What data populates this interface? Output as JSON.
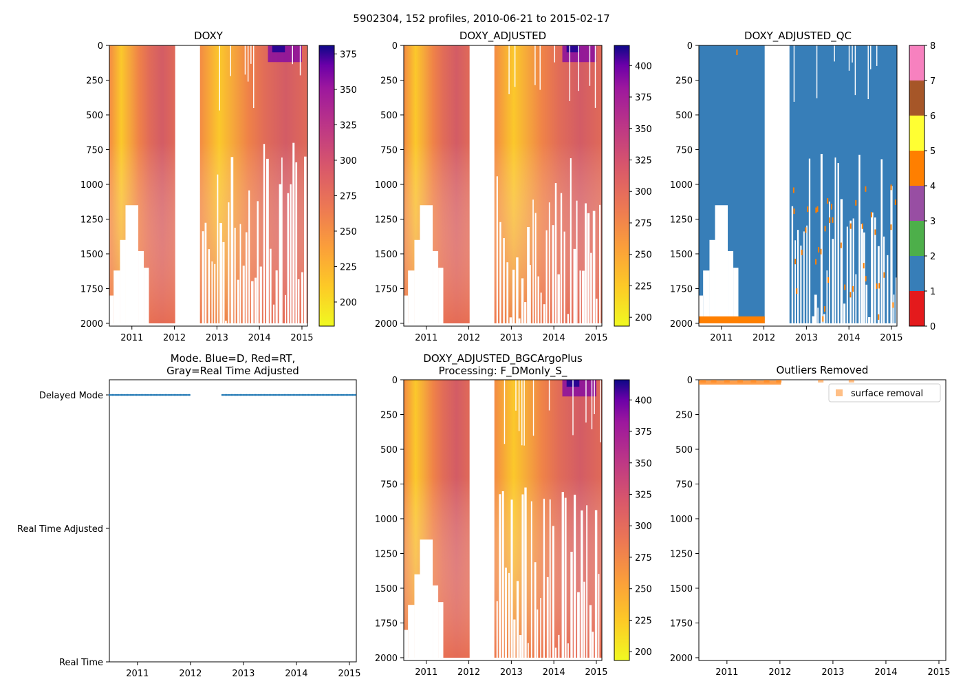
{
  "figure": {
    "suptitle": "5902304, 152 profiles, 2010-06-21 to 2015-02-17"
  },
  "colors": {
    "qc": [
      "#e41a1c",
      "#377eb8",
      "#4daf4a",
      "#984ea3",
      "#ff7f00",
      "#ffff33",
      "#a65628",
      "#f781bf",
      "#999999"
    ],
    "plasma_low": "#f0f921",
    "plasma_high": "#0d0887",
    "outlier": "#ff7f0e",
    "mode_dot": "#1f77b4"
  },
  "chart_data": [
    {
      "id": "doxy",
      "type": "heatmap",
      "title": "DOXY",
      "xlabel": "",
      "ylabel": "",
      "x_range": [
        2010.47,
        2015.13
      ],
      "ylim": [
        2020,
        0
      ],
      "x_ticks": [
        2011,
        2012,
        2013,
        2014,
        2015
      ],
      "y_ticks": [
        0,
        250,
        500,
        750,
        1000,
        1250,
        1500,
        1750,
        2000
      ],
      "colorbar": {
        "cmap": "plasma_r",
        "range": [
          183,
          381
        ],
        "ticks": [
          200,
          225,
          250,
          275,
          300,
          325,
          350,
          375
        ]
      }
    },
    {
      "id": "doxy-adjusted",
      "type": "heatmap",
      "title": "DOXY_ADJUSTED",
      "xlabel": "",
      "ylabel": "",
      "x_range": [
        2010.47,
        2015.13
      ],
      "ylim": [
        2020,
        0
      ],
      "x_ticks": [
        2011,
        2012,
        2013,
        2014,
        2015
      ],
      "y_ticks": [
        0,
        250,
        500,
        750,
        1000,
        1250,
        1500,
        1750,
        2000
      ],
      "colorbar": {
        "cmap": "plasma_r",
        "range": [
          193,
          416
        ],
        "ticks": [
          200,
          225,
          250,
          275,
          300,
          325,
          350,
          375,
          400
        ]
      }
    },
    {
      "id": "doxy-adjusted-qc",
      "type": "heatmap",
      "title": "DOXY_ADJUSTED_QC",
      "xlabel": "",
      "ylabel": "",
      "x_range": [
        2010.47,
        2015.13
      ],
      "ylim": [
        2020,
        0
      ],
      "x_ticks": [
        2011,
        2012,
        2013,
        2014,
        2015
      ],
      "y_ticks": [
        0,
        250,
        500,
        750,
        1000,
        1250,
        1500,
        1750,
        2000
      ],
      "colorbar": {
        "cmap": "categorical",
        "range": [
          0,
          8
        ],
        "ticks": [
          0,
          1,
          2,
          3,
          4,
          5,
          6,
          7,
          8
        ]
      }
    },
    {
      "id": "mode",
      "type": "scatter",
      "title": "Mode. Blue=D, Red=RT,",
      "title_line2": "Gray=Real Time Adjusted",
      "xlabel": "",
      "ylabel": "",
      "x_range": [
        2010.47,
        2015.13
      ],
      "x_ticks": [
        2011,
        2012,
        2013,
        2014,
        2015
      ],
      "y_categories": [
        "Delayed Mode",
        "Real Time Adjusted",
        "Real Time"
      ],
      "series": [
        {
          "name": "Delayed Mode",
          "segments": [
            [
              2010.47,
              2012.0
            ],
            [
              2012.6,
              2015.13
            ]
          ]
        }
      ]
    },
    {
      "id": "bgcargoplus",
      "type": "heatmap",
      "title": "DOXY_ADJUSTED_BGCArgoPlus",
      "title_line2": "Processing: F_DMonly_S_",
      "xlabel": "",
      "ylabel": "",
      "x_range": [
        2010.47,
        2015.13
      ],
      "ylim": [
        2020,
        0
      ],
      "x_ticks": [
        2011,
        2012,
        2013,
        2014,
        2015
      ],
      "y_ticks": [
        0,
        250,
        500,
        750,
        1000,
        1250,
        1500,
        1750,
        2000
      ],
      "colorbar": {
        "cmap": "plasma_r",
        "range": [
          193,
          416
        ],
        "ticks": [
          200,
          225,
          250,
          275,
          300,
          325,
          350,
          375,
          400
        ]
      }
    },
    {
      "id": "outliers",
      "type": "scatter",
      "title": "Outliers Removed",
      "xlabel": "",
      "ylabel": "",
      "x_range": [
        2010.47,
        2015.13
      ],
      "ylim": [
        2020,
        0
      ],
      "x_ticks": [
        2011,
        2012,
        2013,
        2014,
        2015
      ],
      "y_ticks": [
        0,
        250,
        500,
        750,
        1000,
        1250,
        1500,
        1750,
        2000
      ],
      "legend": {
        "label": "surface removal",
        "location": "top-right"
      },
      "series": [
        {
          "name": "surface removal",
          "points": [
            [
              2010.55,
              10
            ],
            [
              2010.75,
              10
            ],
            [
              2011.0,
              10
            ],
            [
              2011.25,
              10
            ],
            [
              2011.5,
              10
            ],
            [
              2011.75,
              10
            ],
            [
              2011.98,
              10
            ],
            [
              2012.77,
              10
            ],
            [
              2013.35,
              10
            ]
          ]
        }
      ]
    }
  ]
}
